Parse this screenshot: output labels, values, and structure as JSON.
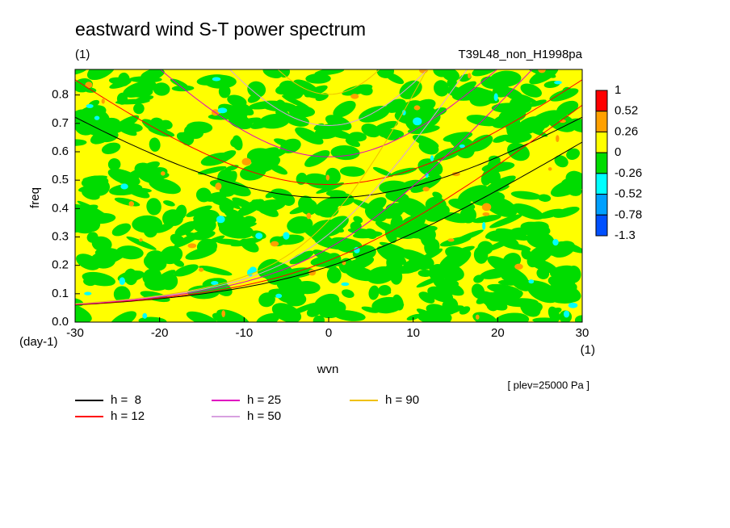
{
  "chart_data": {
    "type": "contour",
    "title": "eastward wind S-T power spectrum",
    "subtitle": "(1)",
    "run_label": "T39L48_non_H1998pa",
    "x_label": "wvn",
    "x_unit": "(1)",
    "y_label": "freq",
    "y_unit": "(day-1)",
    "level_note": "[ plev=25000 Pa ]",
    "xlim": [
      -30,
      30
    ],
    "xticks": [
      -30,
      -20,
      -10,
      0,
      10,
      20,
      30
    ],
    "ylim": [
      0,
      0.89
    ],
    "yticks": [
      {
        "value": 0,
        "label": "0.0"
      },
      0.1,
      0.2,
      0.3,
      0.4,
      0.5,
      0.6,
      0.7,
      0.8
    ],
    "levels": [
      1,
      0.52,
      0.26,
      0,
      -0.26,
      -0.52,
      -0.78,
      -1.3
    ],
    "level_colors": [
      "#ff0000",
      "#ffa000",
      "#ffff00",
      "#00dc00",
      "#00ffff",
      "#00a0ff",
      "#0050ff"
    ],
    "series": [
      {
        "name": "h =  8",
        "h": 8,
        "color": "#000000"
      },
      {
        "name": "h = 12",
        "h": 12,
        "color": "#ff0000"
      },
      {
        "name": "h = 25",
        "h": 25,
        "color": "#e000c0"
      },
      {
        "name": "h = 50",
        "h": 50,
        "color": "#d8a0e0"
      },
      {
        "name": "h = 90",
        "h": 90,
        "color": "#f0c000"
      }
    ]
  }
}
